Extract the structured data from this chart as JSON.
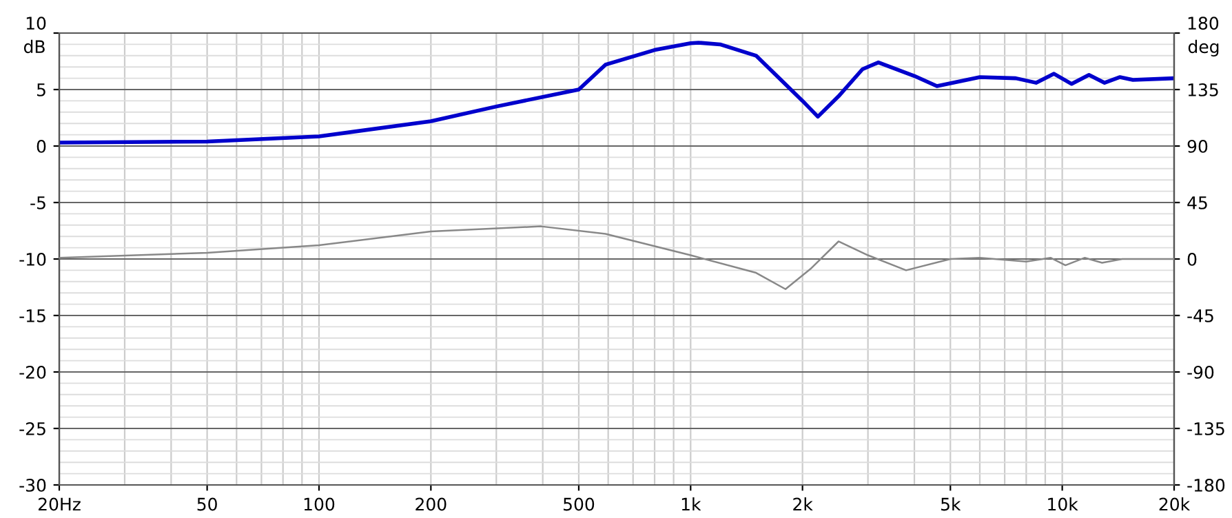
{
  "chart_data": {
    "type": "line",
    "ylabel": "dB",
    "y2label": "deg",
    "log": "x",
    "grid": true,
    "x": [
      20,
      50,
      100,
      200,
      300,
      500,
      590,
      800,
      1000,
      1050,
      1200,
      1500,
      2000,
      2200,
      2500,
      2900,
      3200,
      4000,
      4600,
      6000,
      7500,
      8500,
      9500,
      10600,
      11800,
      13000,
      14300,
      15500,
      20000
    ],
    "series": [
      {
        "color": "#0000cc",
        "values": [
          0.3,
          0.4,
          0.85,
          2.2,
          3.5,
          5.0,
          7.2,
          8.5,
          9.1,
          9.15,
          9.0,
          8.0,
          4.0,
          2.6,
          4.4,
          6.8,
          7.4,
          6.2,
          5.3,
          6.1,
          6.0,
          5.6,
          6.4,
          5.5,
          6.3,
          5.6,
          6.1,
          5.85,
          6.0
        ]
      },
      {
        "color": "#888888",
        "axis": "y2",
        "x": [
          20,
          50,
          100,
          200,
          396,
          590,
          1000,
          1500,
          1800,
          2100,
          2500,
          3000,
          3800,
          5000,
          6000,
          8000,
          9300,
          10200,
          11500,
          12800,
          14500,
          20000
        ],
        "values": [
          1,
          5,
          11,
          22,
          26,
          20,
          3,
          -11,
          -24,
          -8,
          14,
          3,
          -9,
          0,
          1,
          -2,
          1,
          -5,
          1,
          -3,
          0,
          0
        ]
      }
    ],
    "xlim": [
      20,
      20000
    ],
    "xticks": [
      {
        "value": 20,
        "label": "20Hz"
      },
      50,
      100,
      200,
      500,
      {
        "value": 1000,
        "label": "1k"
      },
      {
        "value": 2000,
        "label": "2k"
      },
      {
        "value": 5000,
        "label": "5k"
      },
      {
        "value": 10000,
        "label": "10k"
      },
      {
        "value": 20000,
        "label": "20k"
      }
    ],
    "ylim": [
      -30,
      10
    ],
    "yticks": [
      -30,
      -25,
      -20,
      -15,
      -10,
      -5,
      0,
      5,
      10
    ],
    "y2lim": [
      -180,
      180
    ],
    "y2ticks": [
      -180,
      -135,
      -90,
      -45,
      0,
      45,
      90,
      135,
      180
    ]
  }
}
